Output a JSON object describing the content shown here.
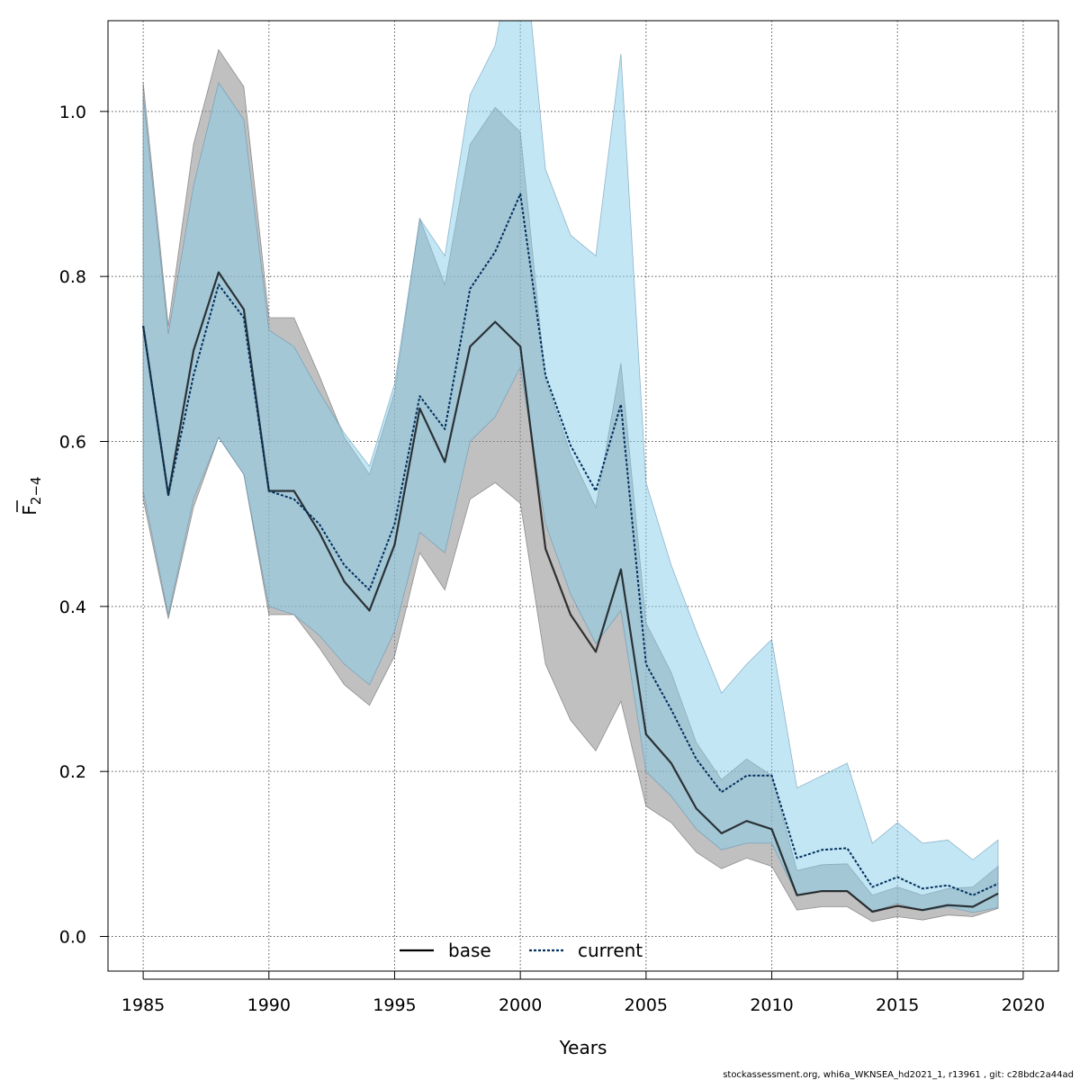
{
  "chart_data": {
    "type": "line",
    "xlabel": "Years",
    "ylabel_main": "F",
    "ylabel_sub": "2−4",
    "xlim": [
      1983.6,
      2021.4
    ],
    "ylim": [
      -0.042,
      1.11
    ],
    "x_ticks": [
      1985,
      1990,
      1995,
      2000,
      2005,
      2010,
      2015,
      2020
    ],
    "y_ticks": [
      0.0,
      0.2,
      0.4,
      0.6,
      0.8,
      1.0
    ],
    "y_tick_labels": [
      "0.0",
      "0.2",
      "0.4",
      "0.6",
      "0.8",
      "1.0"
    ],
    "grid": true,
    "legend_position": "bottom-center",
    "x": [
      1985,
      1986,
      1987,
      1988,
      1989,
      1990,
      1991,
      1992,
      1993,
      1994,
      1995,
      1996,
      1997,
      1998,
      1999,
      2000,
      2001,
      2002,
      2003,
      2004,
      2005,
      2006,
      2007,
      2008,
      2009,
      2010,
      2011,
      2012,
      2013,
      2014,
      2015,
      2016,
      2017,
      2018,
      2019
    ],
    "series": [
      {
        "name": "base",
        "color": "#000000",
        "band_color": "#bebebe",
        "values": [
          0.74,
          0.535,
          0.71,
          0.805,
          0.76,
          0.54,
          0.54,
          0.49,
          0.43,
          0.395,
          0.475,
          0.64,
          0.575,
          0.715,
          0.745,
          0.715,
          0.47,
          0.39,
          0.345,
          0.445,
          0.245,
          0.21,
          0.155,
          0.125,
          0.14,
          0.13,
          0.05,
          0.055,
          0.055,
          0.03,
          0.037,
          0.032,
          0.038,
          0.036,
          0.052
        ],
        "lower": [
          0.53,
          0.385,
          0.52,
          0.605,
          0.56,
          0.39,
          0.39,
          0.35,
          0.305,
          0.28,
          0.34,
          0.465,
          0.42,
          0.53,
          0.55,
          0.525,
          0.33,
          0.262,
          0.225,
          0.285,
          0.158,
          0.138,
          0.102,
          0.082,
          0.095,
          0.085,
          0.032,
          0.036,
          0.036,
          0.018,
          0.024,
          0.02,
          0.026,
          0.024,
          0.034
        ],
        "upper": [
          1.035,
          0.74,
          0.96,
          1.075,
          1.03,
          0.75,
          0.75,
          0.68,
          0.605,
          0.56,
          0.66,
          0.87,
          0.79,
          0.96,
          1.005,
          0.975,
          0.675,
          0.585,
          0.52,
          0.695,
          0.38,
          0.32,
          0.235,
          0.19,
          0.215,
          0.195,
          0.08,
          0.087,
          0.088,
          0.05,
          0.06,
          0.05,
          0.058,
          0.06,
          0.085
        ]
      },
      {
        "name": "current",
        "color": "#00305c",
        "band_color": "#87ceeb",
        "values": [
          0.74,
          0.535,
          0.68,
          0.79,
          0.75,
          0.54,
          0.53,
          0.5,
          0.45,
          0.42,
          0.5,
          0.655,
          0.615,
          0.785,
          0.83,
          0.9,
          0.68,
          0.595,
          0.54,
          0.645,
          0.33,
          0.275,
          0.215,
          0.175,
          0.195,
          0.195,
          0.095,
          0.105,
          0.107,
          0.06,
          0.072,
          0.058,
          0.062,
          0.05,
          0.064
        ],
        "lower": [
          0.54,
          0.39,
          0.53,
          0.605,
          0.56,
          0.4,
          0.39,
          0.365,
          0.33,
          0.305,
          0.37,
          0.49,
          0.465,
          0.6,
          0.63,
          0.69,
          0.5,
          0.415,
          0.355,
          0.395,
          0.2,
          0.17,
          0.13,
          0.105,
          0.113,
          0.113,
          0.05,
          0.055,
          0.055,
          0.03,
          0.04,
          0.031,
          0.036,
          0.029,
          0.035
        ],
        "upper": [
          1.02,
          0.73,
          0.91,
          1.035,
          0.99,
          0.735,
          0.715,
          0.66,
          0.61,
          0.57,
          0.67,
          0.87,
          0.825,
          1.02,
          1.08,
          1.25,
          0.93,
          0.85,
          0.825,
          1.07,
          0.55,
          0.45,
          0.37,
          0.295,
          0.33,
          0.36,
          0.18,
          0.195,
          0.21,
          0.113,
          0.138,
          0.113,
          0.117,
          0.093,
          0.117
        ]
      }
    ],
    "footer": "stockassessment.org, whi6a_WKNSEA_hd2021_1, r13961 , git: c28bdc2a44ad"
  }
}
